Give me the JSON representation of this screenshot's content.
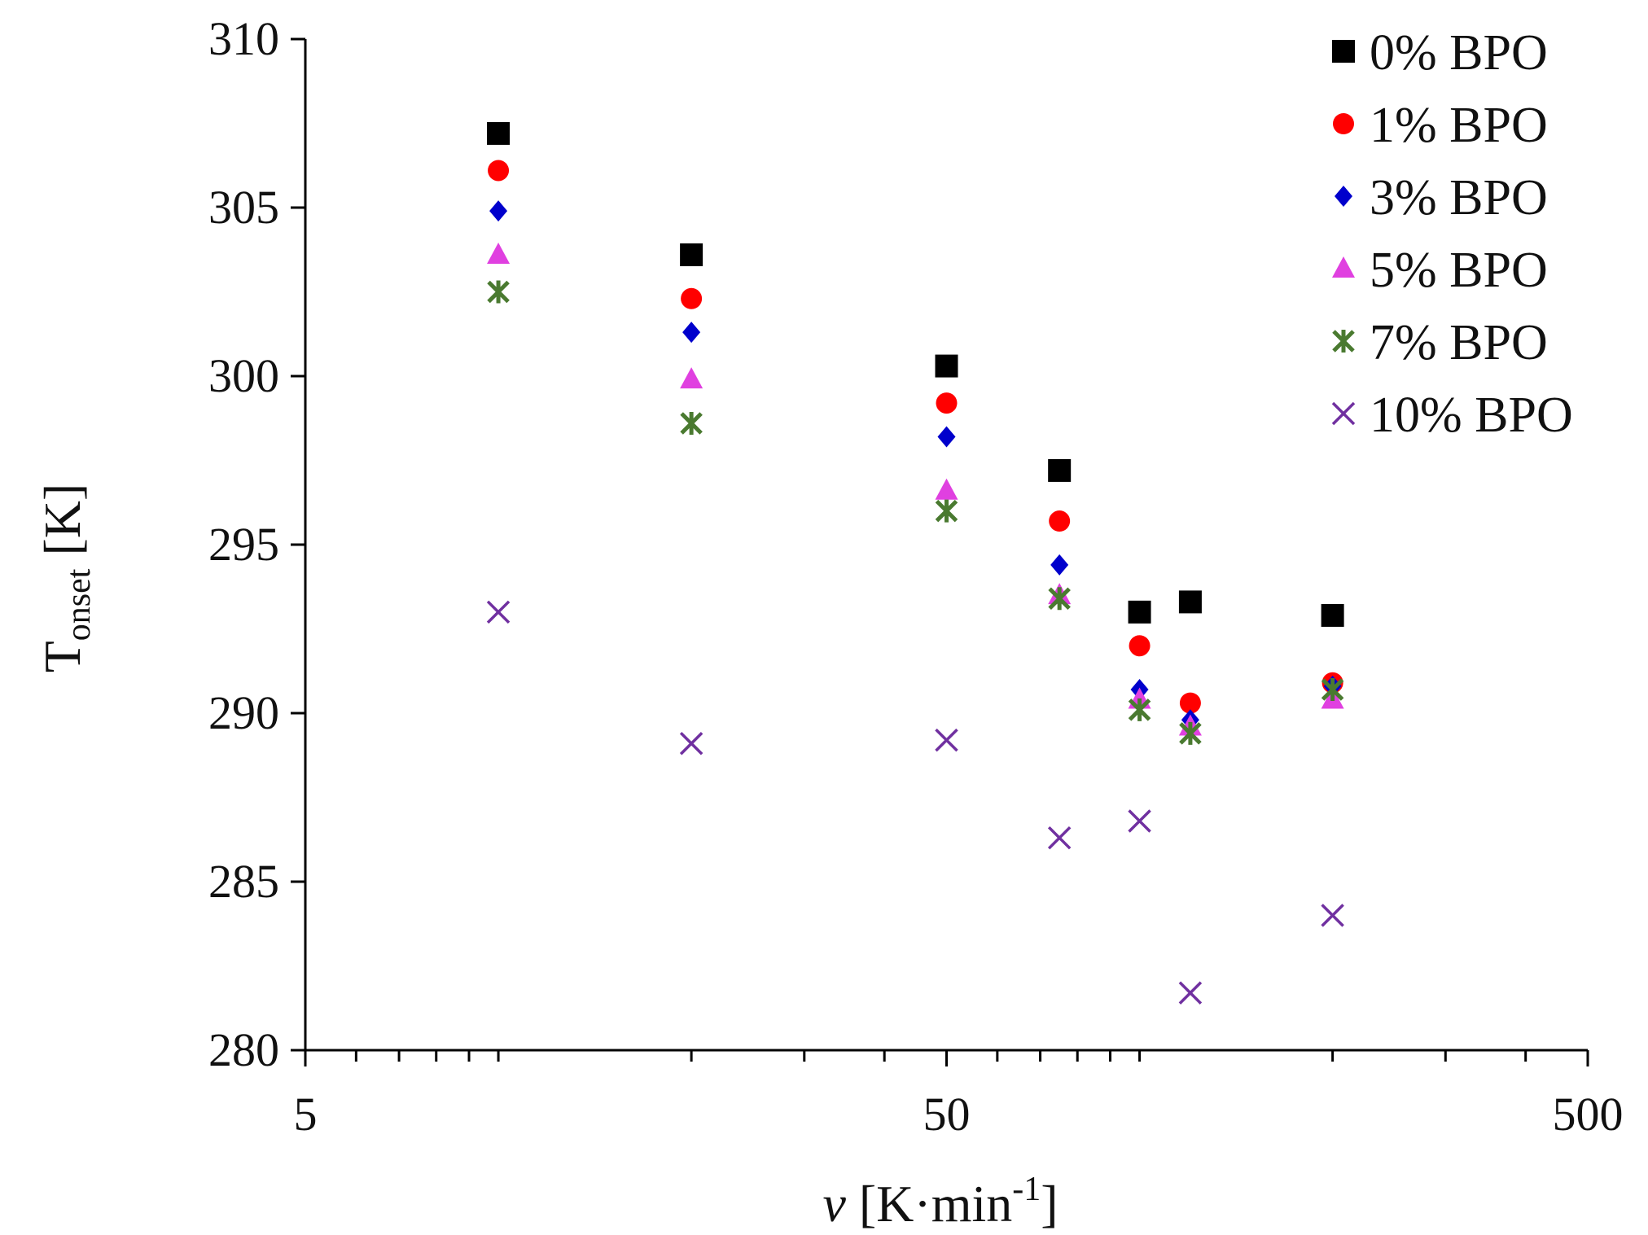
{
  "chart_data": {
    "type": "scatter",
    "xscale": "log",
    "xlim": [
      5,
      500
    ],
    "ylim": [
      280,
      310
    ],
    "xticks": [
      5,
      50,
      500
    ],
    "xtick_labels": [
      "5",
      "50",
      "500"
    ],
    "yticks": [
      280,
      285,
      290,
      295,
      300,
      305,
      310
    ],
    "ytick_labels": [
      "280",
      "285",
      "290",
      "295",
      "300",
      "305",
      "310"
    ],
    "xlabel": {
      "italic": "v",
      "main": " [K·min",
      "sup": "-1",
      "end": "]"
    },
    "ylabel": {
      "main": "T",
      "sub": "onset",
      "end": " [K]"
    },
    "legend_position": "top-right",
    "x": [
      10,
      20,
      50,
      75,
      100,
      120,
      200
    ],
    "series": [
      {
        "name": "0% BPO",
        "marker": "square",
        "color": "#000000",
        "values": [
          307.2,
          303.6,
          300.3,
          297.2,
          293.0,
          293.3,
          292.9
        ]
      },
      {
        "name": "1% BPO",
        "marker": "circle",
        "color": "#ff0000",
        "values": [
          306.1,
          302.3,
          299.2,
          295.7,
          292.0,
          290.3,
          290.9
        ]
      },
      {
        "name": "3% BPO",
        "marker": "diamond",
        "color": "#0000cc",
        "values": [
          304.9,
          301.3,
          298.2,
          294.4,
          290.7,
          289.8,
          290.8
        ]
      },
      {
        "name": "5% BPO",
        "marker": "triangle",
        "color": "#e040e0",
        "values": [
          303.6,
          299.9,
          296.6,
          293.5,
          290.4,
          289.6,
          290.4
        ]
      },
      {
        "name": "7% BPO",
        "marker": "asterisk",
        "color": "#4a7a30",
        "values": [
          302.5,
          298.6,
          296.0,
          293.4,
          290.1,
          289.4,
          290.7
        ]
      },
      {
        "name": "10% BPO",
        "marker": "x",
        "color": "#7030a0",
        "values": [
          293.0,
          289.1,
          289.2,
          286.3,
          286.8,
          281.7,
          284.0
        ]
      }
    ]
  }
}
